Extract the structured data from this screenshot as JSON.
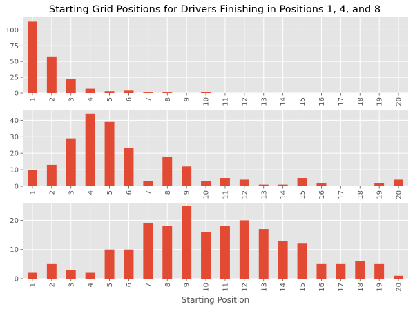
{
  "chart_data": {
    "type": "bar",
    "title": "Starting Grid Positions for Drivers Finishing in Positions 1, 4, and 8",
    "xlabel": "Starting Position",
    "categories": [
      "1",
      "2",
      "3",
      "4",
      "5",
      "6",
      "7",
      "8",
      "9",
      "10",
      "11",
      "12",
      "13",
      "14",
      "15",
      "16",
      "17",
      "18",
      "19",
      "20"
    ],
    "bar_color": "#E24A33",
    "background_color": "#E5E5E5",
    "grid": true,
    "panels": [
      {
        "ylim": [
          0,
          120
        ],
        "yticks": [
          0,
          25,
          50,
          75,
          100
        ],
        "values": [
          113,
          58,
          22,
          7,
          3,
          4,
          1,
          1,
          0,
          2,
          0,
          0,
          0,
          0,
          0,
          0,
          0,
          0,
          0,
          0
        ]
      },
      {
        "ylim": [
          0,
          46
        ],
        "yticks": [
          0,
          10,
          20,
          30,
          40
        ],
        "values": [
          10,
          13,
          29,
          44,
          39,
          23,
          3,
          18,
          12,
          3,
          5,
          4,
          1,
          1,
          5,
          2,
          0,
          0,
          2,
          4
        ]
      },
      {
        "ylim": [
          0,
          26
        ],
        "yticks": [
          0,
          10,
          20
        ],
        "values": [
          2,
          5,
          3,
          2,
          10,
          10,
          19,
          18,
          25,
          16,
          18,
          20,
          17,
          13,
          12,
          5,
          5,
          6,
          5,
          1
        ]
      }
    ]
  }
}
